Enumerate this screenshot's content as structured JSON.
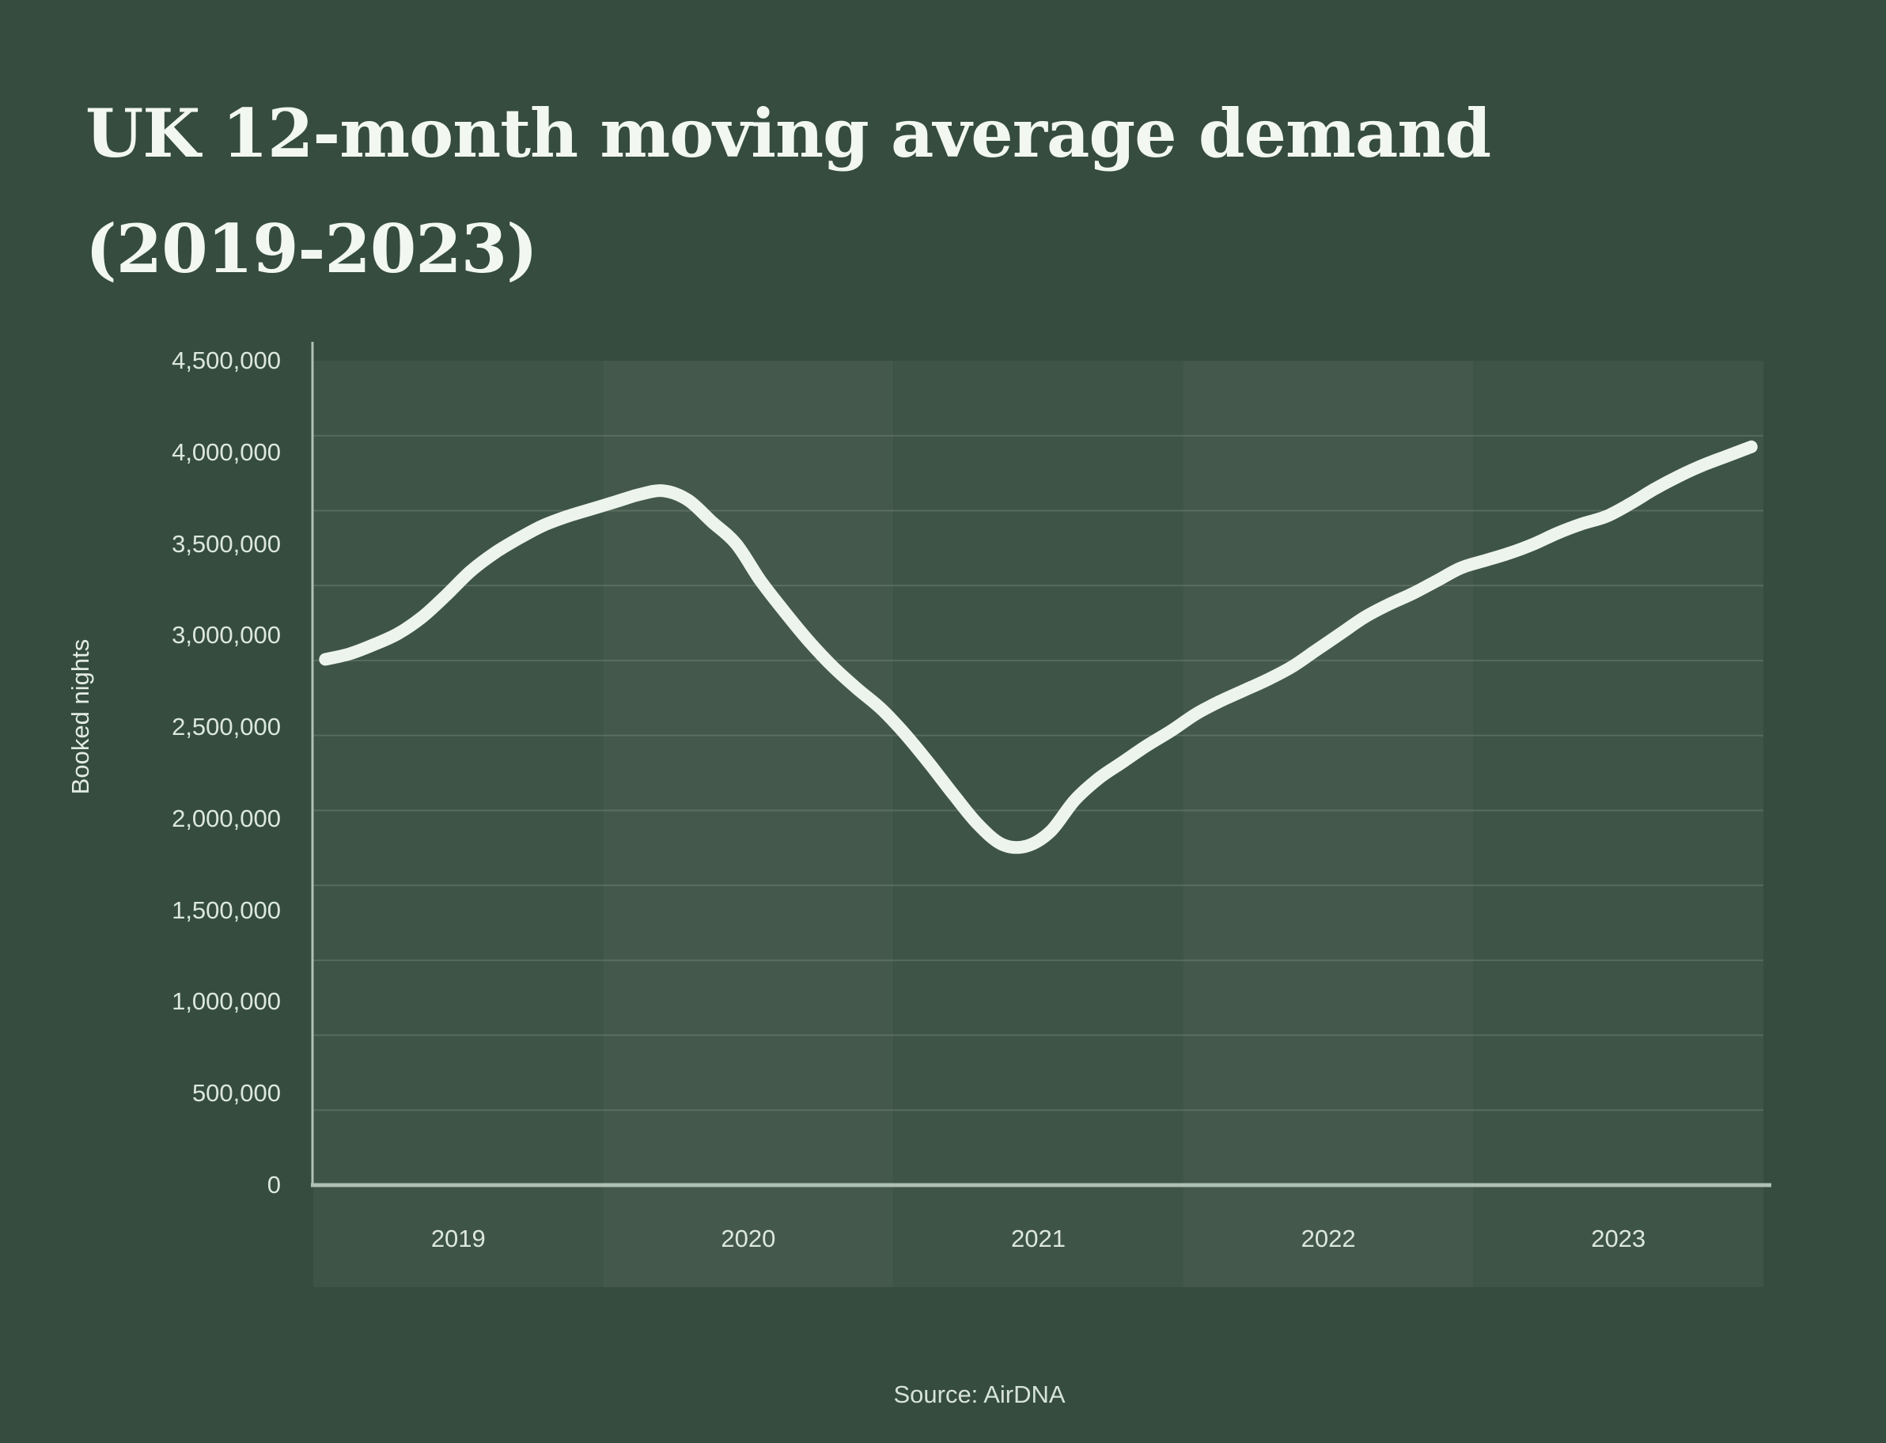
{
  "title": {
    "line1": "UK 12-month moving average demand",
    "line2": "(2019-2023)"
  },
  "source_note": "Source: AirDNA",
  "colors": {
    "background": "#354C3F",
    "band_dark": "#3E5447",
    "band_light": "#44594B",
    "gridline": "rgba(255,255,255,0.13)",
    "axis_line": "#AFC1B3",
    "line": "#EDF4EE",
    "title_text": "#F2F7F1",
    "tick_text": "#DCE7DD",
    "ylabel_text": "#E3ECE4",
    "source_text": "#D7E3D9"
  },
  "chart_data": {
    "type": "line",
    "title": "UK 12-month moving average demand (2019-2023)",
    "xlabel": "",
    "ylabel": "Booked nights",
    "ylim": [
      0,
      4500000
    ],
    "y_tick_step": 500000,
    "y_tick_labels": [
      "0",
      "500,000",
      "1,000,000",
      "1,500,000",
      "2,000,000",
      "2,500,000",
      "3,000,000",
      "3,500,000",
      "4,000,000",
      "4,500,000"
    ],
    "categories": [
      "2019",
      "2020",
      "2021",
      "2022",
      "2023"
    ],
    "x_resolution": "monthly",
    "grid": "horizontal only, 11 equal divisions (not aligned to tick labels)",
    "legend_position": "none",
    "series": [
      {
        "name": "Booked nights (12-month moving average)",
        "values": [
          2870000,
          2900000,
          2950000,
          3010000,
          3100000,
          3220000,
          3350000,
          3450000,
          3530000,
          3600000,
          3650000,
          3690000,
          3730000,
          3770000,
          3790000,
          3740000,
          3620000,
          3500000,
          3300000,
          3130000,
          2970000,
          2830000,
          2710000,
          2600000,
          2460000,
          2300000,
          2130000,
          1970000,
          1860000,
          1850000,
          1930000,
          2100000,
          2220000,
          2310000,
          2400000,
          2480000,
          2570000,
          2640000,
          2700000,
          2760000,
          2830000,
          2920000,
          3010000,
          3100000,
          3170000,
          3230000,
          3300000,
          3370000,
          3410000,
          3450000,
          3500000,
          3560000,
          3610000,
          3650000,
          3720000,
          3800000,
          3870000,
          3930000,
          3980000,
          4030000
        ]
      }
    ]
  }
}
